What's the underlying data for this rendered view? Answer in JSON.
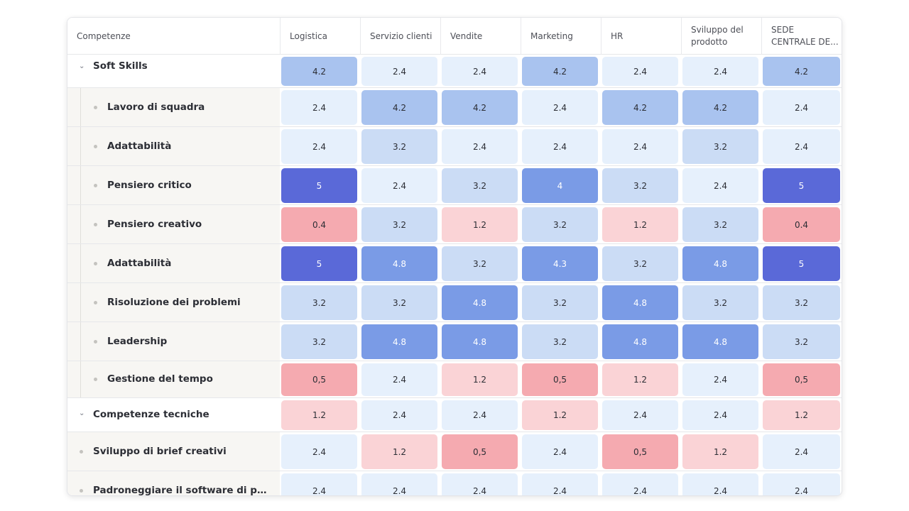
{
  "columns": [
    "Competenze",
    "Logistica",
    "Servizio clienti",
    "Vendite",
    "Marketing",
    "HR",
    "Sviluppo del prodotto",
    "SEDE CENTRALE DE..."
  ],
  "rows": [
    {
      "label": "Soft Skills",
      "type": "group",
      "expanded": true,
      "values": [
        "4.2",
        "2.4",
        "2.4",
        "4.2",
        "2.4",
        "2.4",
        "4.2"
      ]
    },
    {
      "label": "Lavoro di squadra",
      "type": "child",
      "values": [
        "2.4",
        "4.2",
        "4.2",
        "2.4",
        "4.2",
        "4.2",
        "2.4"
      ]
    },
    {
      "label": "Adattabilità",
      "type": "child",
      "values": [
        "2.4",
        "3.2",
        "2.4",
        "2.4",
        "2.4",
        "3.2",
        "2.4"
      ]
    },
    {
      "label": "Pensiero critico",
      "type": "child",
      "values": [
        "5",
        "2.4",
        "3.2",
        "4",
        "3.2",
        "2.4",
        "5"
      ]
    },
    {
      "label": "Pensiero creativo",
      "type": "child",
      "values": [
        "0.4",
        "3.2",
        "1.2",
        "3.2",
        "1.2",
        "3.2",
        "0.4"
      ]
    },
    {
      "label": "Adattabilità",
      "type": "child",
      "values": [
        "5",
        "4.8",
        "3.2",
        "4.3",
        "3.2",
        "4.8",
        "5"
      ]
    },
    {
      "label": "Risoluzione dei problemi",
      "type": "child",
      "values": [
        "3.2",
        "3.2",
        "4.8",
        "3.2",
        "4.8",
        "3.2",
        "3.2"
      ]
    },
    {
      "label": "Leadership",
      "type": "child",
      "values": [
        "3.2",
        "4.8",
        "4.8",
        "3.2",
        "4.8",
        "4.8",
        "3.2"
      ]
    },
    {
      "label": "Gestione del tempo",
      "type": "child",
      "values": [
        "0,5",
        "2.4",
        "1.2",
        "0,5",
        "1.2",
        "2.4",
        "0,5"
      ]
    },
    {
      "label": "Competenze tecniche",
      "type": "group",
      "expanded": true,
      "values": [
        "1.2",
        "2.4",
        "2.4",
        "1.2",
        "2.4",
        "2.4",
        "1.2"
      ]
    },
    {
      "label": "Sviluppo di brief creativi",
      "type": "leaf",
      "values": [
        "2.4",
        "1.2",
        "0,5",
        "2.4",
        "0,5",
        "1.2",
        "2.4"
      ]
    },
    {
      "label": "Padroneggiare il software di progetta...",
      "type": "leaf",
      "values": [
        "2.4",
        "2.4",
        "2.4",
        "2.4",
        "2.4",
        "2.4",
        "2.4"
      ]
    }
  ],
  "colors": {
    "scale_blue_low": "#e6f0fc",
    "scale_blue_mid": "#cbdcf5",
    "scale_blue_4.2": "#a9c3ef",
    "scale_blue_4.8": "#7a9be6",
    "scale_blue_5": "#5a69d8",
    "scale_red_1.2": "#fad3d6",
    "scale_red_0.5": "#f5aab0"
  }
}
